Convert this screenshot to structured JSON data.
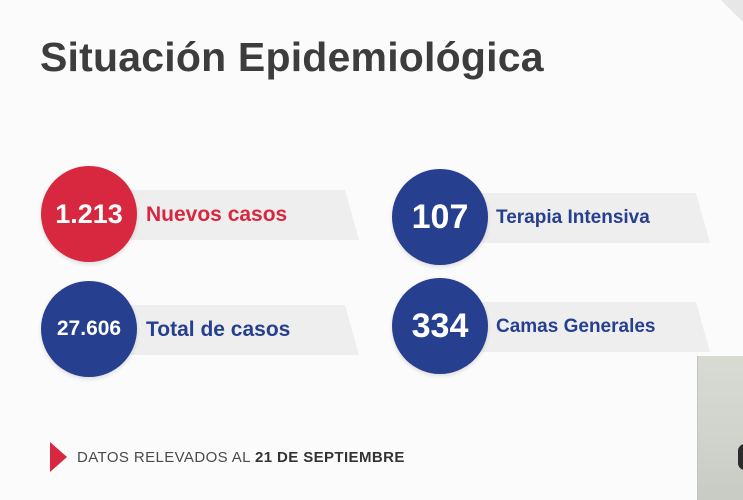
{
  "title": "Situación Epidemiológica",
  "stats": {
    "nuevos": {
      "value": "1.213",
      "label": "Nuevos casos",
      "color": "#d8283f",
      "label_color": "#d8283f"
    },
    "total": {
      "value": "27.606",
      "label": "Total de casos",
      "color": "#263f8f",
      "label_color": "#263f8f"
    },
    "terapia": {
      "value": "107",
      "label": "Terapia Intensiva",
      "color": "#263f8f",
      "label_color": "#263f8f"
    },
    "camas": {
      "value": "334",
      "label": "Camas Generales",
      "color": "#263f8f",
      "label_color": "#263f8f"
    }
  },
  "footer": {
    "prefix": "DATOS RELEVADOS AL",
    "date": "21 DE SEPTIEMBRE",
    "marker_color": "#d8283f",
    "marker_icon": "triangle-marker-icon"
  }
}
